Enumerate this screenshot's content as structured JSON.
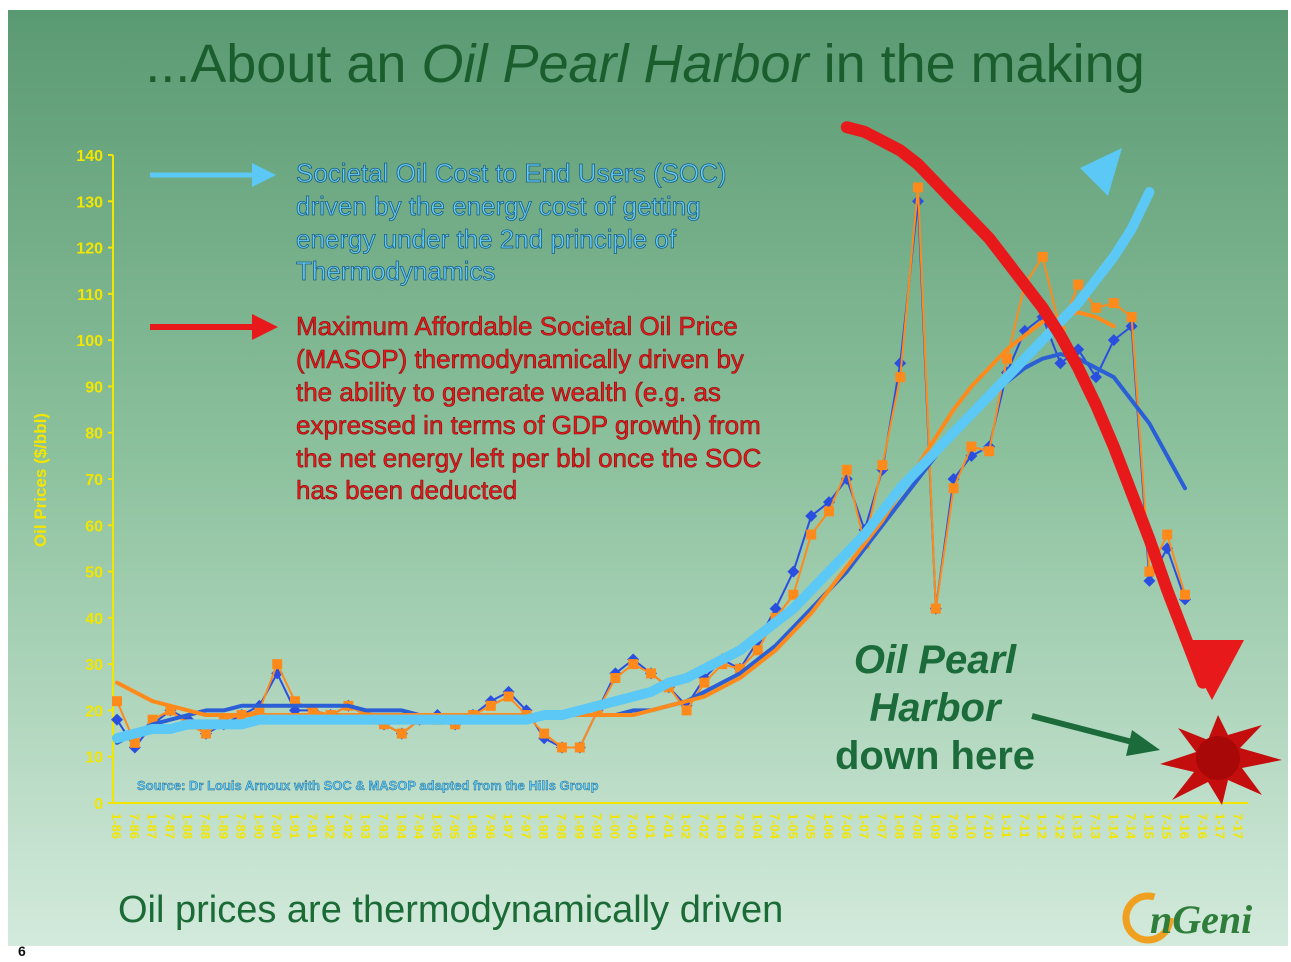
{
  "chart_data": {
    "type": "line",
    "title": [
      "...About an ",
      "Oil Pearl Harbor",
      " in the making"
    ],
    "subtitle": "Oil prices are thermodynamically driven",
    "y_label": "Oil Prices ($/bbl)",
    "source": "Source: Dr Louis Arnoux with SOC & MASOP adapted from the Hills Group",
    "soc_note": [
      "Societal Oil Cost to End Users (SOC)",
      "driven by the energy cost of getting",
      "energy under the 2nd principle of",
      "Thermodynamics"
    ],
    "masop_note": [
      "Maximum Affordable Societal Oil Price",
      "(MASOP) thermodynamically driven by",
      "the ability to generate wealth (e.g. as",
      "expressed in terms of GDP growth) from",
      "the net energy left per bbl once the SOC",
      "has been deducted"
    ],
    "harbor_note": [
      "Oil Pearl",
      "Harbor",
      "down here"
    ],
    "logo": "nGeni",
    "page_number": "6",
    "categories": [
      "1-86",
      "7-86",
      "1-87",
      "7-87",
      "1-88",
      "7-88",
      "1-89",
      "7-89",
      "1-90",
      "7-90",
      "1-91",
      "7-91",
      "1-92",
      "7-92",
      "1-93",
      "7-93",
      "1-94",
      "7-94",
      "1-95",
      "7-95",
      "1-96",
      "7-96",
      "1-97",
      "7-97",
      "1-98",
      "7-98",
      "1-99",
      "7-99",
      "1-00",
      "7-00",
      "1-01",
      "7-01",
      "1-02",
      "7-02",
      "1-03",
      "7-03",
      "1-04",
      "7-04",
      "1-05",
      "7-05",
      "1-06",
      "7-06",
      "1-07",
      "7-07",
      "1-08",
      "7-08",
      "1-09",
      "7-09",
      "1-10",
      "7-10",
      "1-11",
      "7-11",
      "1-12",
      "7-12",
      "1-13",
      "7-13",
      "1-14",
      "7-14",
      "1-15",
      "7-15",
      "1-16",
      "7-16",
      "1-17",
      "7-17"
    ],
    "ylim": [
      0,
      140
    ],
    "yticks": [
      0,
      10,
      20,
      30,
      40,
      50,
      60,
      70,
      80,
      90,
      100,
      110,
      120,
      130,
      140
    ],
    "axis_color": "#f2e600",
    "series": [
      {
        "color": "#2a4fe0",
        "marker": "diamond",
        "line_width": 2,
        "values": [
          18,
          12,
          17,
          20,
          18,
          15,
          17,
          19,
          21,
          28,
          20,
          20,
          19,
          21,
          19,
          17,
          15,
          18,
          19,
          17,
          19,
          22,
          24,
          20,
          14,
          12,
          12,
          20,
          28,
          31,
          28,
          25,
          21,
          27,
          31,
          29,
          35,
          42,
          50,
          62,
          65,
          70,
          59,
          72,
          95,
          130,
          42,
          70,
          75,
          77,
          93,
          102,
          105,
          95,
          98,
          92,
          100,
          103,
          48,
          55,
          44,
          null,
          null,
          null
        ]
      },
      {
        "color": "#ff8a1c",
        "marker": "square",
        "line_width": 2,
        "values": [
          22,
          13,
          18,
          20,
          17,
          15,
          18,
          19,
          20,
          30,
          22,
          20,
          19,
          21,
          19,
          17,
          15,
          18,
          18,
          17,
          19,
          21,
          23,
          19,
          15,
          12,
          12,
          20,
          27,
          30,
          28,
          25,
          20,
          26,
          30,
          29,
          33,
          40,
          45,
          58,
          63,
          72,
          56,
          73,
          92,
          133,
          42,
          68,
          77,
          76,
          96,
          112,
          118,
          102,
          112,
          107,
          108,
          105,
          50,
          58,
          45,
          null,
          null,
          null
        ]
      },
      {
        "color": "#2a5fd6",
        "line_width": 4,
        "values": [
          13,
          15,
          17,
          18,
          19,
          20,
          20,
          21,
          21,
          21,
          21,
          21,
          21,
          21,
          20,
          20,
          20,
          19,
          19,
          19,
          19,
          19,
          19,
          19,
          19,
          19,
          19,
          19,
          19,
          20,
          20,
          21,
          22,
          24,
          26,
          28,
          31,
          34,
          38,
          42,
          46,
          50,
          55,
          60,
          65,
          70,
          75,
          80,
          84,
          88,
          91,
          94,
          96,
          97,
          96,
          94,
          92,
          87,
          82,
          75,
          68,
          null,
          null,
          null
        ]
      },
      {
        "color": "#ff8a1c",
        "line_width": 4,
        "values": [
          26,
          24,
          22,
          21,
          20,
          19,
          19,
          19,
          19,
          19,
          19,
          19,
          19,
          19,
          19,
          19,
          19,
          19,
          19,
          19,
          19,
          19,
          19,
          19,
          19,
          19,
          19,
          19,
          19,
          19,
          20,
          21,
          22,
          23,
          25,
          27,
          30,
          33,
          37,
          41,
          46,
          51,
          56,
          61,
          67,
          73,
          79,
          85,
          90,
          94,
          98,
          101,
          104,
          105,
          106,
          105,
          103,
          null,
          null,
          null,
          null,
          null,
          null,
          null
        ]
      },
      {
        "color": "#5bc8f5",
        "line_width": 10,
        "values": [
          14,
          15,
          16,
          16,
          17,
          17,
          17,
          17,
          18,
          18,
          18,
          18,
          18,
          18,
          18,
          18,
          18,
          18,
          18,
          18,
          18,
          18,
          18,
          18,
          19,
          19,
          20,
          21,
          22,
          23,
          24,
          26,
          27,
          29,
          31,
          33,
          36,
          39,
          42,
          46,
          50,
          54,
          58,
          63,
          68,
          72,
          76,
          80,
          84,
          88,
          92,
          96,
          100,
          104,
          108,
          113,
          118,
          124,
          132,
          null,
          null,
          null,
          null,
          null
        ]
      },
      {
        "color": "#e8191a",
        "line_width": 12,
        "values": [
          null,
          null,
          null,
          null,
          null,
          null,
          null,
          null,
          null,
          null,
          null,
          null,
          null,
          null,
          null,
          null,
          null,
          null,
          null,
          null,
          null,
          null,
          null,
          null,
          null,
          null,
          null,
          null,
          null,
          null,
          null,
          null,
          null,
          null,
          null,
          null,
          null,
          null,
          null,
          null,
          null,
          146,
          145,
          143,
          141,
          138,
          134,
          130,
          126,
          122,
          117,
          112,
          107,
          101,
          94,
          86,
          77,
          67,
          57,
          46,
          36,
          26,
          null,
          null
        ]
      }
    ]
  }
}
